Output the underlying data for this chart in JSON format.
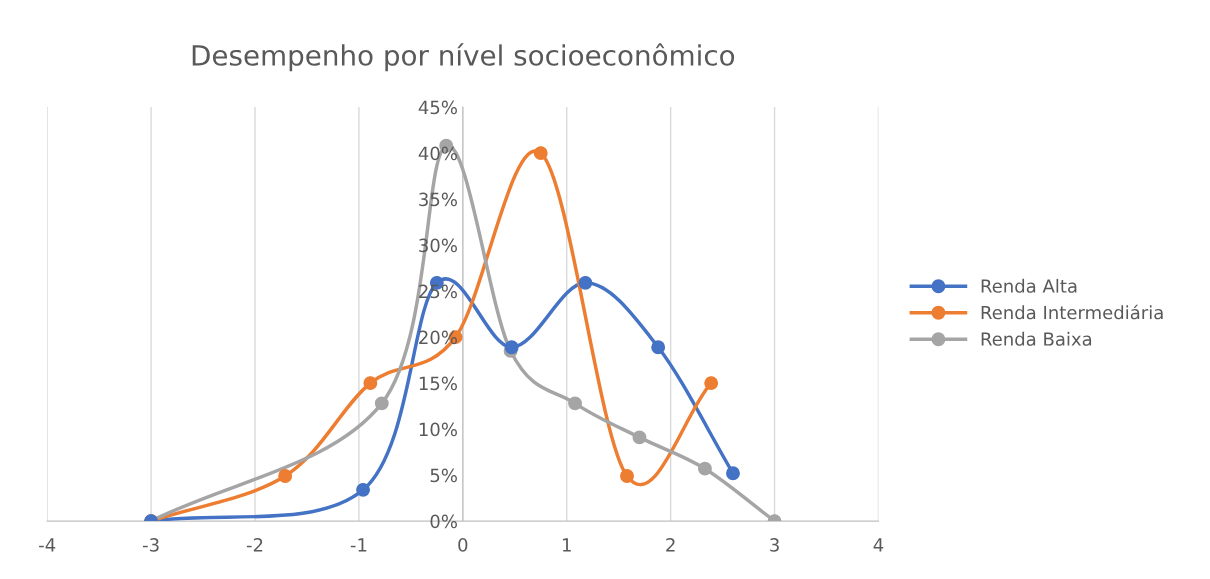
{
  "chart_data": {
    "type": "line",
    "title": "Desempenho por nível socioeconômico",
    "series": [
      {
        "name": "Renda Alta",
        "color": "#4472c4",
        "x": [
          -3,
          -0.96,
          -0.25,
          0.47,
          1.18,
          1.88,
          2.6
        ],
        "values": [
          0,
          3.4,
          25.9,
          18.9,
          25.9,
          18.9,
          5.2
        ]
      },
      {
        "name": "Renda Intermediária",
        "color": "#ed7d31",
        "x": [
          -3,
          -1.71,
          -0.89,
          -0.07,
          0.75,
          1.58,
          2.39
        ],
        "values": [
          0,
          4.9,
          15.0,
          20.0,
          40.0,
          4.9,
          15.0
        ]
      },
      {
        "name": "Renda Baixa",
        "color": "#a5a5a5",
        "x": [
          -3,
          -0.78,
          -0.16,
          0.46,
          1.08,
          1.7,
          2.33,
          3.0
        ],
        "values": [
          0,
          12.8,
          40.8,
          18.5,
          12.8,
          9.1,
          5.7,
          0
        ]
      }
    ],
    "xlim": [
      -4,
      4
    ],
    "xticks": [
      -4,
      -3,
      -2,
      -1,
      0,
      1,
      2,
      3,
      4
    ],
    "ylim": [
      0,
      45
    ],
    "yticks": [
      {
        "value": 0,
        "label": "0%"
      },
      {
        "value": 5,
        "label": "5%"
      },
      {
        "value": 10,
        "label": "10%"
      },
      {
        "value": 15,
        "label": "15%"
      },
      {
        "value": 20,
        "label": "20%"
      },
      {
        "value": 25,
        "label": "25%"
      },
      {
        "value": 30,
        "label": "30%"
      },
      {
        "value": 35,
        "label": "35%"
      },
      {
        "value": 40,
        "label": "40%"
      },
      {
        "value": 45,
        "label": "45%"
      }
    ],
    "grid": "x",
    "legend": "right",
    "marker": "circle",
    "line_style": "solid"
  }
}
